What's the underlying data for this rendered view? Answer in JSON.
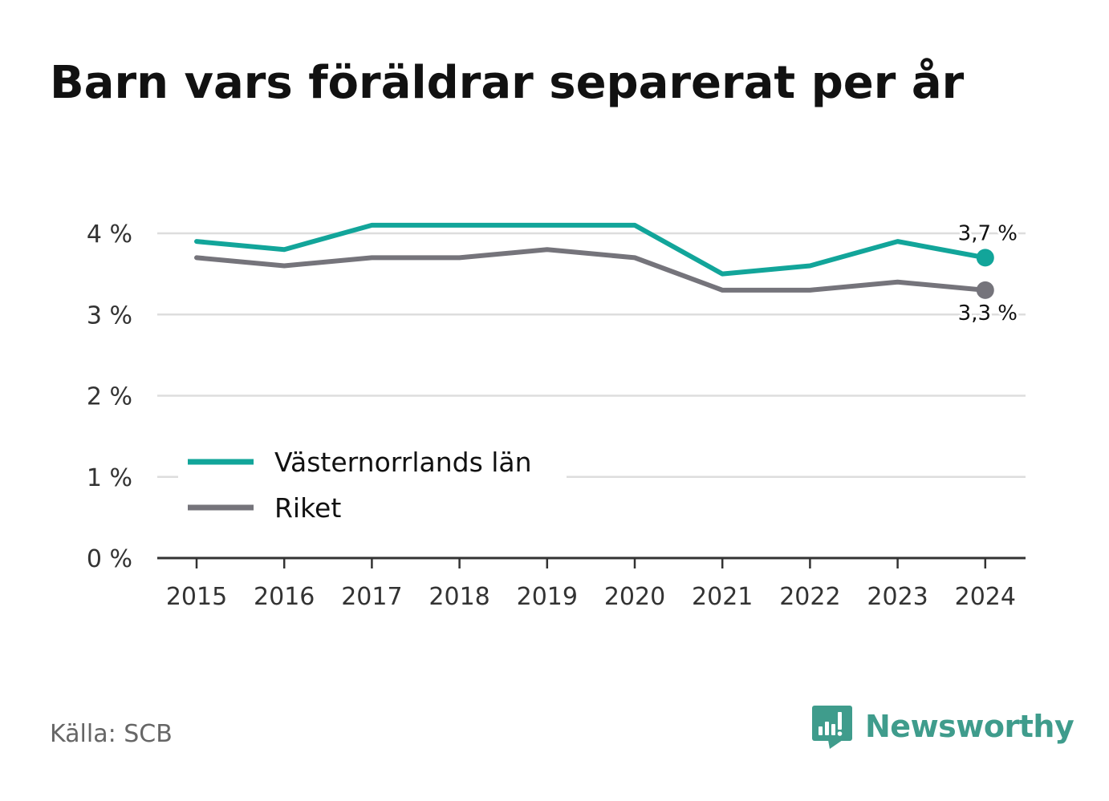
{
  "title": "Barn vars föräldrar separerat per år",
  "source": "Källa: SCB",
  "brand": {
    "name": "Newsworthy",
    "icon": "newsworthy-chart-bubble-icon",
    "color": "#3f9c8c"
  },
  "chart_data": {
    "type": "line",
    "title": "Barn vars föräldrar separerat per år",
    "xlabel": "",
    "ylabel": "",
    "x": [
      "2015",
      "2016",
      "2017",
      "2018",
      "2019",
      "2020",
      "2021",
      "2022",
      "2023",
      "2024"
    ],
    "yticks": [
      0,
      1,
      2,
      3,
      4
    ],
    "ytick_labels": [
      "0 %",
      "1 %",
      "2 %",
      "3 %",
      "4 %"
    ],
    "ylim": [
      0,
      4.2
    ],
    "grid": true,
    "legend_position": "bottom-left",
    "series": [
      {
        "name": "Västernorrlands län",
        "color": "#12a59a",
        "values": [
          3.9,
          3.8,
          4.1,
          4.1,
          4.1,
          4.1,
          3.5,
          3.6,
          3.9,
          3.7
        ],
        "end_label": "3,7 %"
      },
      {
        "name": "Riket",
        "color": "#75747b",
        "values": [
          3.7,
          3.6,
          3.7,
          3.7,
          3.8,
          3.7,
          3.3,
          3.3,
          3.4,
          3.3
        ],
        "end_label": "3,3 %"
      }
    ]
  }
}
